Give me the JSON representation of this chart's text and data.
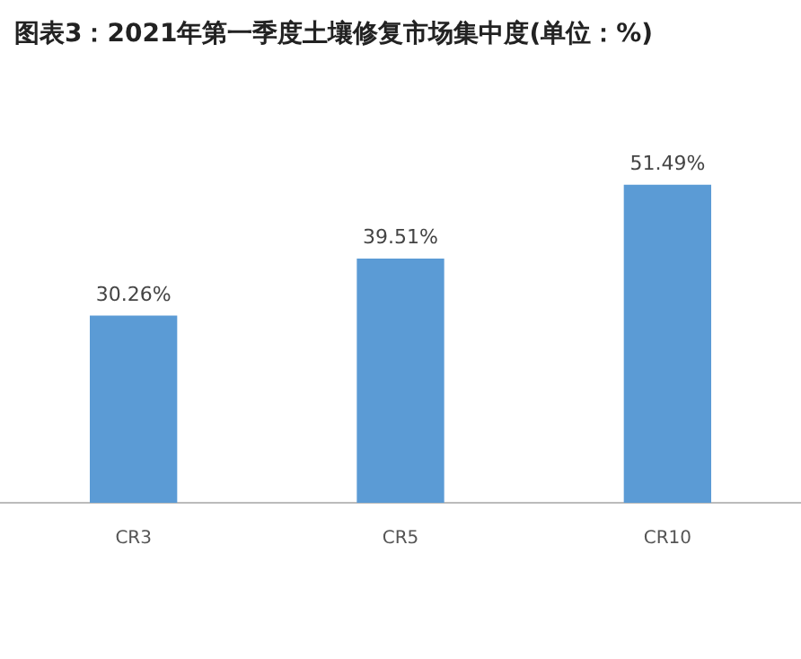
{
  "chart_data": {
    "type": "bar",
    "title": "图表3：2021年第一季度土壤修复市场集中度(单位：%)",
    "categories": [
      "CR3",
      "CR5",
      "CR10"
    ],
    "values": [
      30.26,
      39.51,
      51.49
    ],
    "color": "#5b9bd5",
    "value_labels": [
      "30.26%",
      "39.51%",
      "51.49%"
    ],
    "grid": false,
    "legend": false
  }
}
